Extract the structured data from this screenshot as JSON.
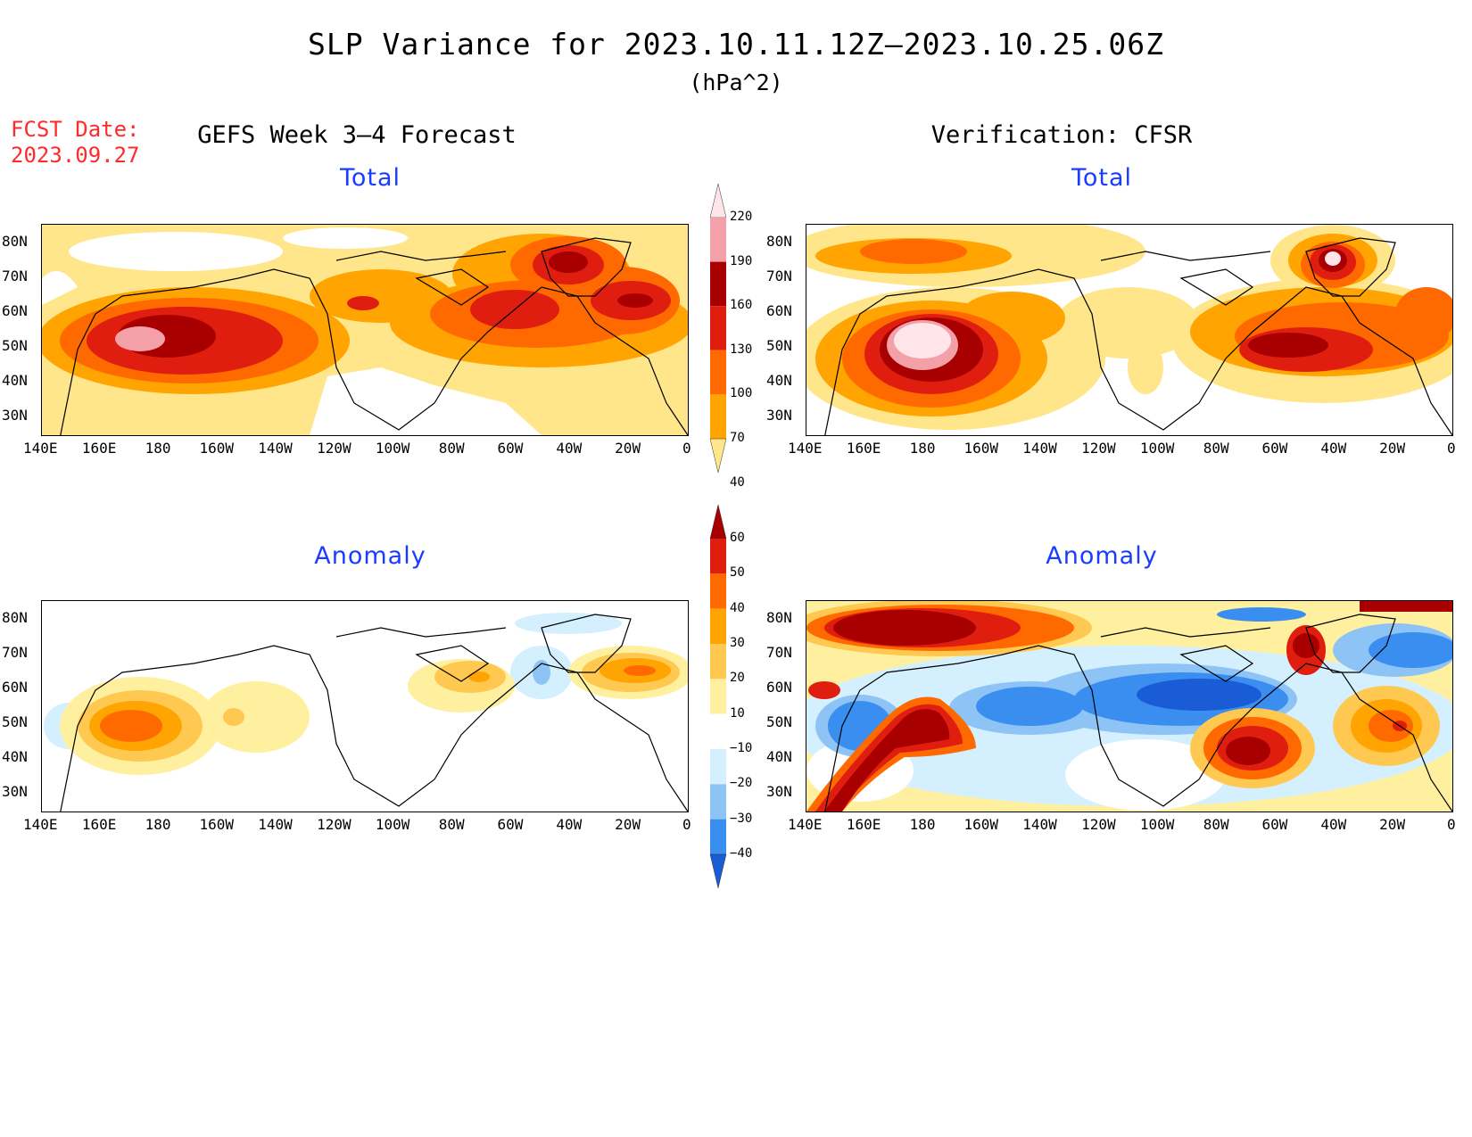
{
  "header": {
    "title": "SLP Variance for 2023.10.11.12Z–2023.10.25.06Z",
    "units": "(hPa^2)",
    "fcst_label": "FCST Date:",
    "fcst_date": "2023.09.27"
  },
  "columns": {
    "left_title": "GEFS Week 3–4 Forecast",
    "right_title": "Verification: CFSR"
  },
  "panels": {
    "top_left_title": "Total",
    "top_right_title": "Total",
    "bottom_left_title": "Anomaly",
    "bottom_right_title": "Anomaly"
  },
  "axes": {
    "lat_labels": [
      "80N",
      "70N",
      "60N",
      "50N",
      "40N",
      "30N"
    ],
    "lon_labels": [
      "140E",
      "160E",
      "180",
      "160W",
      "140W",
      "120W",
      "100W",
      "80W",
      "60W",
      "40W",
      "20W",
      "0"
    ]
  },
  "colorbars": {
    "total": {
      "levels": [
        "220",
        "190",
        "160",
        "130",
        "100",
        "70",
        "40"
      ],
      "colors": [
        "#ffe4ea",
        "#f4a0a8",
        "#a80000",
        "#e01e10",
        "#ff6a00",
        "#ffa400",
        "#ffe68a"
      ]
    },
    "anomaly": {
      "levels": [
        "60",
        "50",
        "40",
        "30",
        "20",
        "10",
        "−10",
        "−20",
        "−30",
        "−40"
      ],
      "colors": [
        "#a80000",
        "#e01e10",
        "#ff6a00",
        "#ffa400",
        "#ffc850",
        "#fff0a0",
        "#ffffff",
        "#d4f0ff",
        "#8ec4f5",
        "#3a8ef0",
        "#1a5cd6"
      ]
    }
  }
}
